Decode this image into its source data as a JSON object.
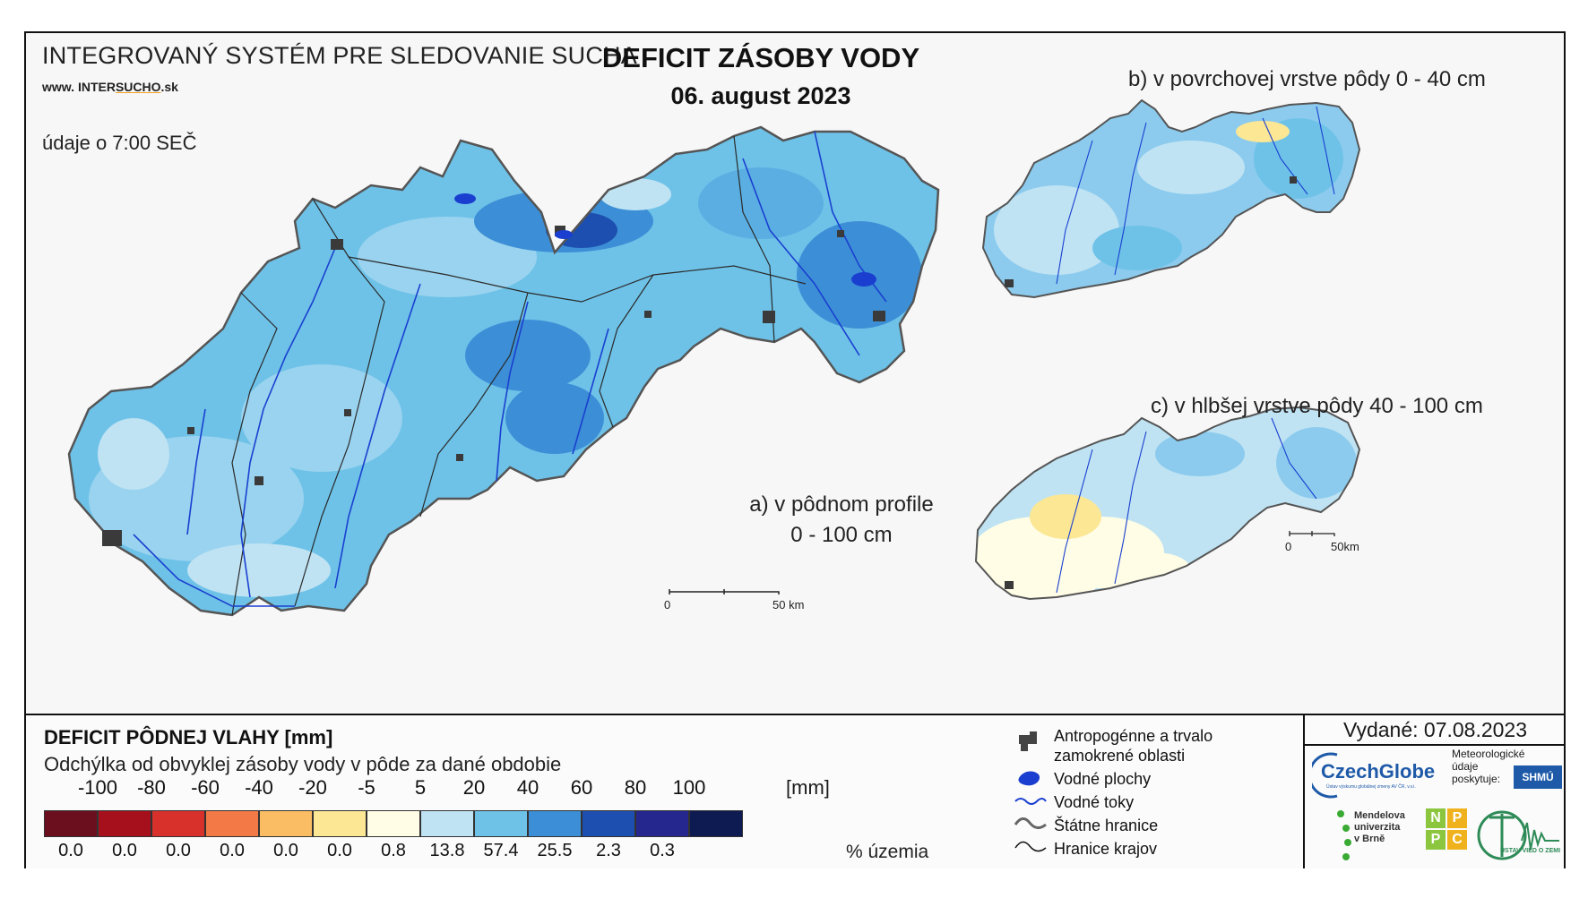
{
  "header": {
    "system_title": "INTEGROVANÝ SYSTÉM PRE SLEDOVANIE SUCHA",
    "website_prefix": "www.",
    "website_mid": "INTER",
    "website_brand": "SUCHO",
    "website_suffix": ".sk",
    "observation_time": "údaje o 7:00 SEČ",
    "title": "DEFICIT ZÁSOBY VODY",
    "date": "06. august 2023"
  },
  "maps": {
    "a_label_line1": "a) v pôdnom profile",
    "a_label_line2": "0 - 100 cm",
    "b_label": "b) v povrchovej vrstve pôdy 0 - 40 cm",
    "c_label": "c) v hlbšej vrstve pôdy 40 - 100 cm",
    "scale_main_zero": "0",
    "scale_main_end": "50 km",
    "scale_small_zero": "0",
    "scale_small_end": "50km"
  },
  "legend": {
    "title": "DEFICIT PÔDNEJ VLAHY [mm]",
    "subtitle": "Odchýlka od obvyklej zásoby vody v pôde za dané obdobie",
    "ticks": [
      "-100",
      "-80",
      "-60",
      "-40",
      "-20",
      "-5",
      "5",
      "20",
      "40",
      "60",
      "80",
      "100"
    ],
    "unit": "[mm]",
    "classes": [
      {
        "color": "#6b0f1f",
        "percent": "0.0"
      },
      {
        "color": "#a5101c",
        "percent": "0.0"
      },
      {
        "color": "#d8302a",
        "percent": "0.0"
      },
      {
        "color": "#f37a46",
        "percent": "0.0"
      },
      {
        "color": "#fbbd63",
        "percent": "0.0"
      },
      {
        "color": "#fbe794",
        "percent": "0.0"
      },
      {
        "color": "#fffde6",
        "percent": "0.8"
      },
      {
        "color": "#bfe3f3",
        "percent": "13.8"
      },
      {
        "color": "#6ec2e8",
        "percent": "57.4"
      },
      {
        "color": "#3c8fd6",
        "percent": "25.5"
      },
      {
        "color": "#1d4fb0",
        "percent": "2.3"
      },
      {
        "color": "#25278e",
        "percent": "0.3"
      },
      {
        "color": "#0e1a52",
        "percent": ""
      }
    ],
    "percent_unit": "% územia",
    "symbols": {
      "urban": "Antropogénne a trvalo",
      "urban2": "zamokrené oblasti",
      "water_bodies": "Vodné plochy",
      "rivers": "Vodné toky",
      "state_border": "Štátne hranice",
      "region_border": "Hranice krajov"
    },
    "issued": "Vydané: 07.08.2023",
    "czechglobe": "CzechGlobe",
    "czechglobe_sub": "Ústav výskumu globálnej zmeny AV ČR, v.v.i.",
    "meteo_line1": "Meteorologické",
    "meteo_line2": "údaje",
    "meteo_line3": "poskytuje:",
    "shmu": "SHMÚ",
    "mendel_line1": "Mendelova",
    "mendel_line2": "univerzita",
    "mendel_line3": "v Brně",
    "nppc_n": "N",
    "nppc_p1": "P",
    "nppc_p2": "P",
    "nppc_c": "C",
    "uvz": "ÚSTAV VIED O ZEMI"
  },
  "colors": {
    "main_fill": "#6ec2e8",
    "dark_fill": "#3c8fd6",
    "light_fill": "#bfe3f3",
    "river": "#1a3fd0",
    "urban": "#3a3a3a",
    "dry_fill": "#fbe794"
  }
}
